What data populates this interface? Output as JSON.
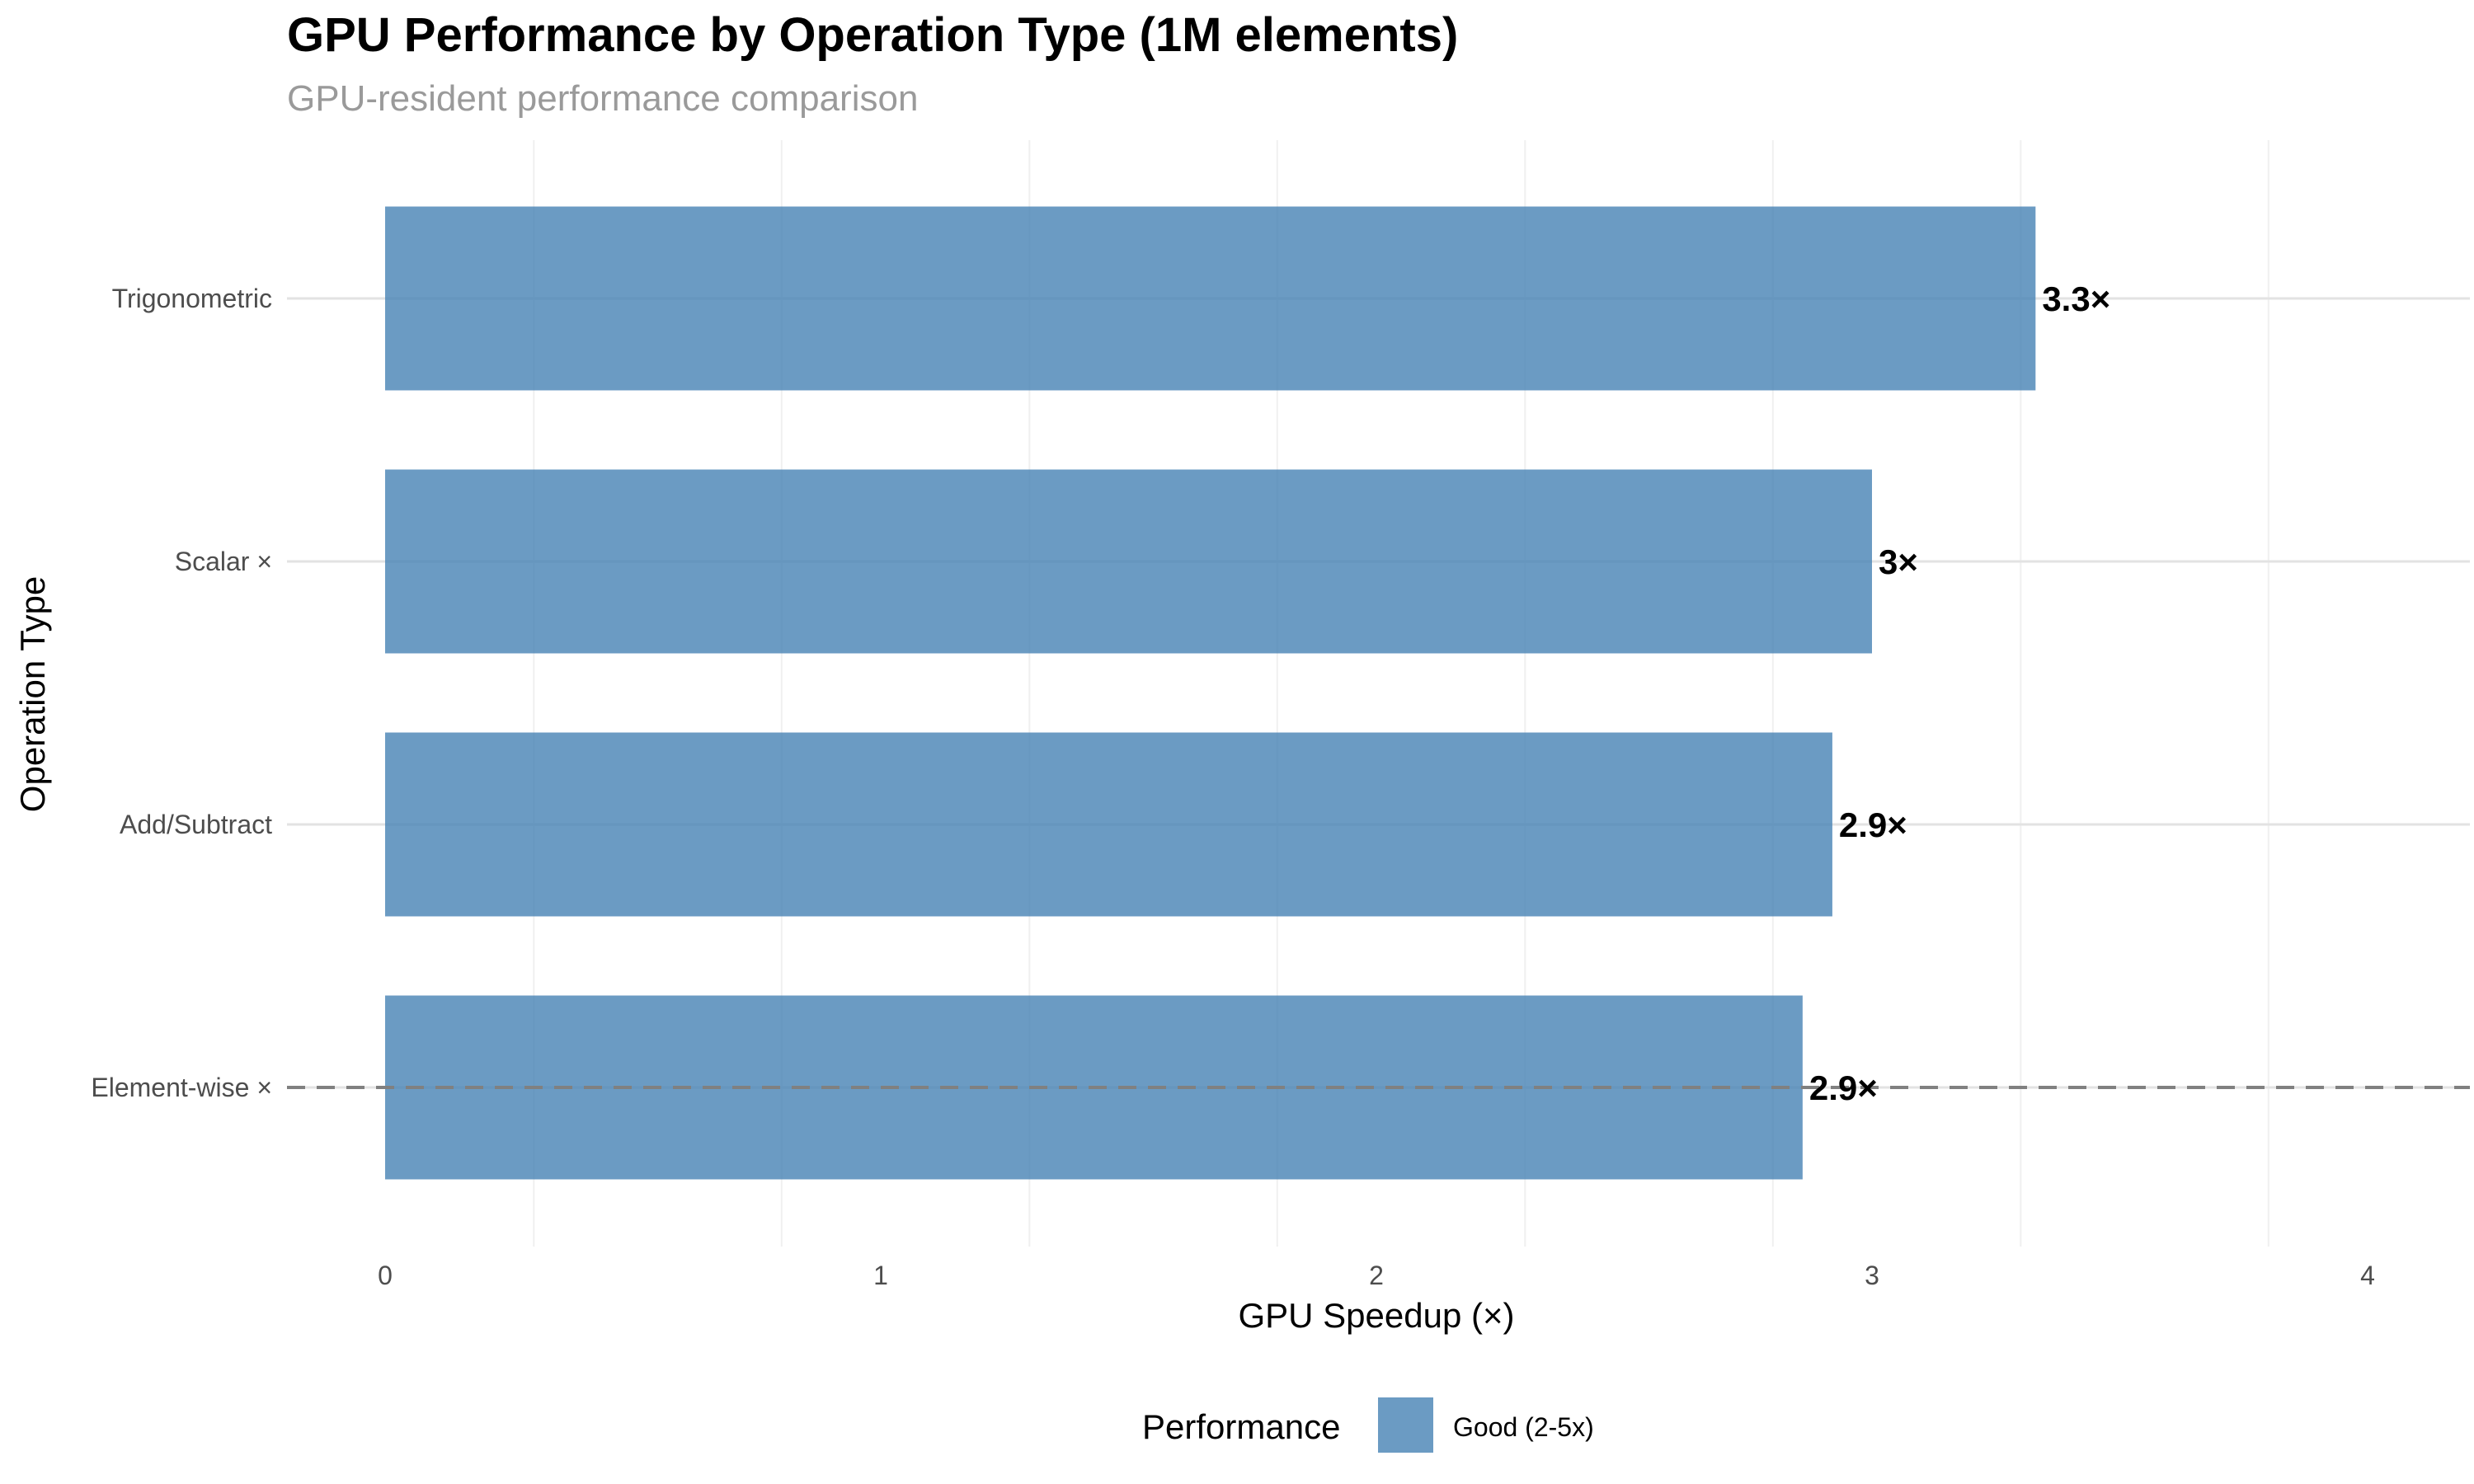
{
  "chart_data": {
    "type": "bar",
    "orientation": "horizontal",
    "title": "GPU Performance by Operation Type (1M elements)",
    "subtitle": "GPU-resident performance comparison",
    "xlabel": "GPU Speedup (×)",
    "ylabel": "Operation Type",
    "categories": [
      "Element-wise ×",
      "Add/Subtract",
      "Scalar ×",
      "Trigonometric"
    ],
    "values": [
      2.86,
      2.92,
      3.0,
      3.33
    ],
    "data_labels": [
      "2.9×",
      "2.9×",
      "3×",
      "3.3×"
    ],
    "xlim": [
      -0.2,
      4.2
    ],
    "x_ticks": [
      0,
      1,
      2,
      3,
      4
    ],
    "x_tick_labels": [
      "0",
      "1",
      "2",
      "3",
      "4"
    ],
    "grid": true,
    "reference_line": {
      "category": "Element-wise ×",
      "style": "dashed",
      "color": "#808080"
    },
    "bar_color": "#4682B4",
    "bar_opacity": 0.8,
    "legend": {
      "title": "Performance",
      "position": "bottom",
      "entries": [
        {
          "label": "Good (2-5x)",
          "color": "#4682B4"
        }
      ]
    }
  }
}
